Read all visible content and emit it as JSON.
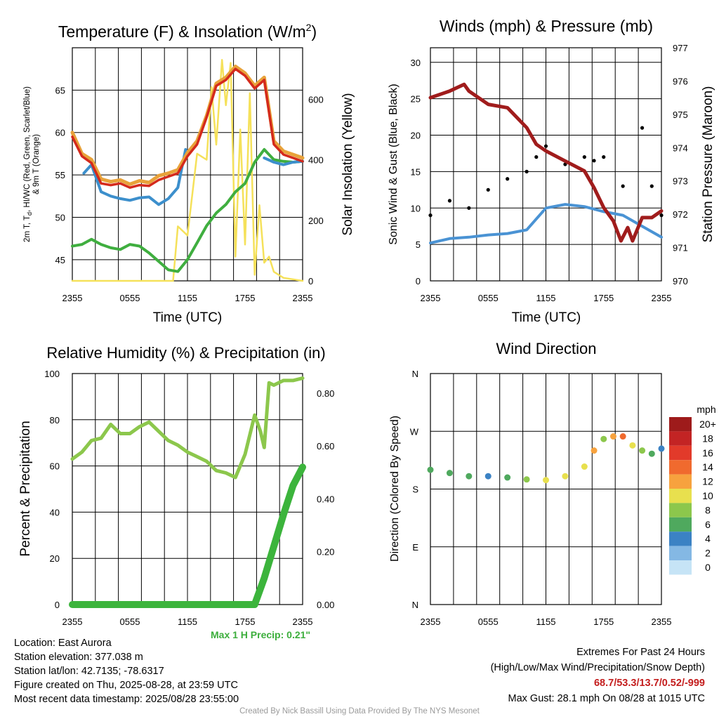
{
  "chart_data": [
    {
      "type": "line",
      "title": "Temperature (F) & Insolation (W/m²)",
      "xlabel": "Time (UTC)",
      "ylabel": "2m T, Td, HI/WC (Red, Green, Scarlet/Blue) & 9m T (Orange)",
      "y2label": "Solar Insolation (Yellow)",
      "x_ticks": [
        "2355",
        "0555",
        "1155",
        "1755",
        "2355"
      ],
      "ylim": [
        42.5,
        70
      ],
      "y_ticks": [
        45,
        50,
        55,
        60,
        65
      ],
      "y2lim": [
        0,
        770
      ],
      "y2_ticks": [
        0,
        200,
        400,
        600
      ],
      "series": [
        {
          "color": "#e8a23a",
          "x": [
            0,
            1,
            2,
            3,
            4,
            5,
            6,
            7,
            8,
            9,
            10,
            11,
            12,
            13,
            14,
            15,
            16,
            17,
            18,
            19,
            20,
            21,
            22,
            23,
            24
          ],
          "values": [
            60,
            57.5,
            56.8,
            54.5,
            54.2,
            54.4,
            53.9,
            54.3,
            54.1,
            54.9,
            55.2,
            55.6,
            57.6,
            59,
            62,
            65.8,
            66.5,
            67.8,
            67,
            65.5,
            66.5,
            59,
            57.8,
            57.4,
            57
          ]
        },
        {
          "color": "#d42a1c",
          "x": [
            0,
            1,
            2,
            3,
            4,
            5,
            6,
            7,
            8,
            9,
            10,
            11,
            12,
            13,
            14,
            15,
            16,
            17,
            18,
            19,
            20,
            21,
            22,
            23,
            24
          ],
          "values": [
            59.5,
            57.2,
            56.4,
            54,
            53.8,
            54,
            53.5,
            53.8,
            53.7,
            54.4,
            54.8,
            55.2,
            57.2,
            58.6,
            61.8,
            65.5,
            66.2,
            67.5,
            66.7,
            65.2,
            66.2,
            58.6,
            57.4,
            57,
            56.6
          ]
        },
        {
          "color": "#3c8fcc",
          "x": [
            1.2,
            2,
            3,
            4,
            5,
            6,
            7,
            8,
            9,
            10,
            11,
            11.8
          ],
          "values": [
            55.2,
            56.2,
            53,
            52.5,
            52.2,
            52,
            52.3,
            52.4,
            51.5,
            52.2,
            53.5,
            58
          ],
          "x2": [
            20,
            21,
            22,
            23,
            24
          ],
          "values2": [
            57,
            56.5,
            56.2,
            56.5,
            56.6
          ]
        },
        {
          "color": "#3fae3f",
          "x": [
            0,
            1,
            2,
            3,
            4,
            5,
            6,
            7,
            8,
            9,
            10,
            11,
            12,
            13,
            14,
            15,
            16,
            17,
            18,
            19,
            20,
            21,
            22,
            23,
            24
          ],
          "values": [
            46.6,
            46.8,
            47.4,
            46.8,
            46.4,
            46.2,
            46.8,
            46.6,
            45.8,
            44.8,
            43.8,
            43.6,
            45,
            47,
            49,
            50.5,
            51.5,
            53,
            54,
            56.5,
            58,
            56.8,
            56.6,
            56.5,
            56.6
          ]
        },
        {
          "color": "#f5e15a",
          "axis": "right",
          "x": [
            0,
            10.5,
            11,
            12,
            13,
            14,
            14.5,
            15,
            15.6,
            16,
            16.5,
            17,
            17.5,
            18,
            18.5,
            19,
            19.5,
            20,
            20.5,
            21,
            22,
            24
          ],
          "values": [
            0,
            0,
            180,
            150,
            420,
            400,
            640,
            450,
            730,
            580,
            720,
            80,
            500,
            120,
            620,
            20,
            250,
            60,
            80,
            30,
            10,
            0
          ]
        }
      ]
    },
    {
      "type": "line",
      "title": "Winds (mph) & Pressure (mb)",
      "xlabel": "Time (UTC)",
      "ylabel": "Sonic Wind & Gust (Blue, Black)",
      "y2label": "Station Pressure (Maroon)",
      "x_ticks": [
        "2355",
        "0555",
        "1155",
        "1755",
        "2355"
      ],
      "ylim": [
        0,
        32
      ],
      "y_ticks": [
        0,
        5,
        10,
        15,
        20,
        25,
        30
      ],
      "y2lim": [
        970,
        977
      ],
      "y2_ticks": [
        970,
        971,
        972,
        973,
        974,
        975,
        976,
        977
      ],
      "series": [
        {
          "color": "#4a93d4",
          "x": [
            0,
            2,
            4,
            6,
            8,
            10,
            12,
            14,
            16,
            18,
            20,
            22,
            24
          ],
          "values": [
            5.2,
            5.8,
            6,
            6.3,
            6.5,
            7,
            10,
            10.5,
            10.2,
            9.5,
            9,
            7.5,
            6
          ]
        },
        {
          "color": "#000000",
          "type": "scatter",
          "x": [
            0,
            2,
            4,
            6,
            8,
            10,
            11,
            12,
            14,
            16,
            17,
            18,
            20,
            22,
            23,
            24
          ],
          "values": [
            9,
            11,
            10,
            12.5,
            14,
            15,
            17,
            18.5,
            16,
            17,
            16.5,
            17,
            13,
            21,
            13,
            9
          ]
        },
        {
          "color": "#a01c1c",
          "axis": "right",
          "x": [
            0,
            2,
            3.5,
            4,
            6,
            8,
            10,
            11,
            12,
            14,
            16,
            17,
            18,
            19,
            19.8,
            20.5,
            21,
            22,
            23,
            24
          ],
          "values": [
            975.5,
            975.7,
            975.9,
            975.7,
            975.3,
            975.2,
            974.6,
            974.1,
            973.9,
            973.6,
            973.3,
            972.8,
            972.2,
            971.8,
            971.2,
            971.6,
            971.2,
            971.9,
            971.9,
            972.1
          ]
        }
      ]
    },
    {
      "type": "line",
      "title": "Relative Humidity (%) & Precipitation (in)",
      "ylabel": "Percent & Precipitation",
      "x_ticks": [
        "2355",
        "0555",
        "1155",
        "1755",
        "2355"
      ],
      "ylim": [
        0,
        100
      ],
      "y_ticks": [
        0,
        20,
        40,
        60,
        80,
        100
      ],
      "y2lim": [
        0,
        0.874
      ],
      "y2_ticks": [
        "0.00",
        "0.20",
        "0.40",
        "0.60",
        "0.80"
      ],
      "annotation": "Max 1 H Precip: 0.21\"",
      "series": [
        {
          "color": "#8cc74c",
          "x": [
            0,
            1,
            2,
            3,
            4,
            5,
            6,
            7,
            8,
            9,
            10,
            11,
            12,
            13,
            14,
            15,
            16,
            17,
            18,
            19,
            19.6,
            20,
            20.5,
            21,
            22,
            23,
            24
          ],
          "values": [
            63,
            66,
            71,
            72,
            78,
            74,
            74,
            77,
            79,
            75,
            71,
            69,
            66,
            64,
            62,
            58,
            57,
            55,
            65,
            82,
            75,
            68,
            96,
            95,
            97,
            97,
            98
          ]
        },
        {
          "color": "#3cb43c",
          "axis": "right",
          "x": [
            0,
            16,
            18,
            19,
            20,
            21,
            22,
            23,
            24
          ],
          "values": [
            0,
            0,
            0,
            0,
            0.1,
            0.22,
            0.34,
            0.45,
            0.52
          ]
        }
      ]
    },
    {
      "type": "scatter",
      "title": "Wind Direction",
      "ylabel": "Direction (Colored By Speed)",
      "x_ticks": [
        "2355",
        "0555",
        "1155",
        "1755",
        "2355"
      ],
      "y_ticks": [
        "N",
        "E",
        "S",
        "W",
        "N"
      ],
      "legend_title": "mph",
      "legend_labels": [
        "20+",
        "18",
        "16",
        "14",
        "12",
        "10",
        "8",
        "6",
        "4",
        "2",
        "0"
      ],
      "legend_colors": [
        "#9e1b1b",
        "#c32424",
        "#e23a2a",
        "#f06a2e",
        "#f7a23e",
        "#e8e04e",
        "#8cc74c",
        "#4fa95e",
        "#3b82c4",
        "#84b8e4",
        "#c6e4f6"
      ],
      "series": [
        {
          "x": [
            0,
            2,
            4,
            6,
            8,
            10,
            12,
            14,
            16,
            17,
            18,
            19,
            20,
            21,
            22,
            23,
            24
          ],
          "values": [
            210,
            205,
            200,
            200,
            198,
            195,
            194,
            200,
            215,
            240,
            258,
            262,
            262,
            248,
            240,
            235,
            243
          ],
          "speed": [
            6,
            6,
            6,
            4,
            6,
            8,
            10,
            10,
            10,
            12,
            8,
            12,
            14,
            10,
            8,
            6,
            4
          ]
        }
      ]
    }
  ],
  "station": {
    "max_precip": "Max 1 H Precip: 0.21\"",
    "location": "Location: East Aurora",
    "elevation": "Station elevation: 377.038 m",
    "latlon": "Station lat/lon: 42.7135; -78.6317",
    "created": "Figure created on Thu, 2025-08-28, at 23:59 UTC",
    "recent": "Most recent data timestamp: 2025/08/28 23:55:00"
  },
  "extremes": {
    "title": "Extremes For Past 24 Hours",
    "subtitle": "(High/Low/Max Wind/Precipitation/Snow Depth)",
    "values": "68.7/53.3/13.7/0.52/-999",
    "gust": "Max Gust: 28.1 mph On 08/28 at 1015 UTC"
  },
  "credit": "Created By Nick Bassill Using Data Provided By The NYS Mesonet"
}
